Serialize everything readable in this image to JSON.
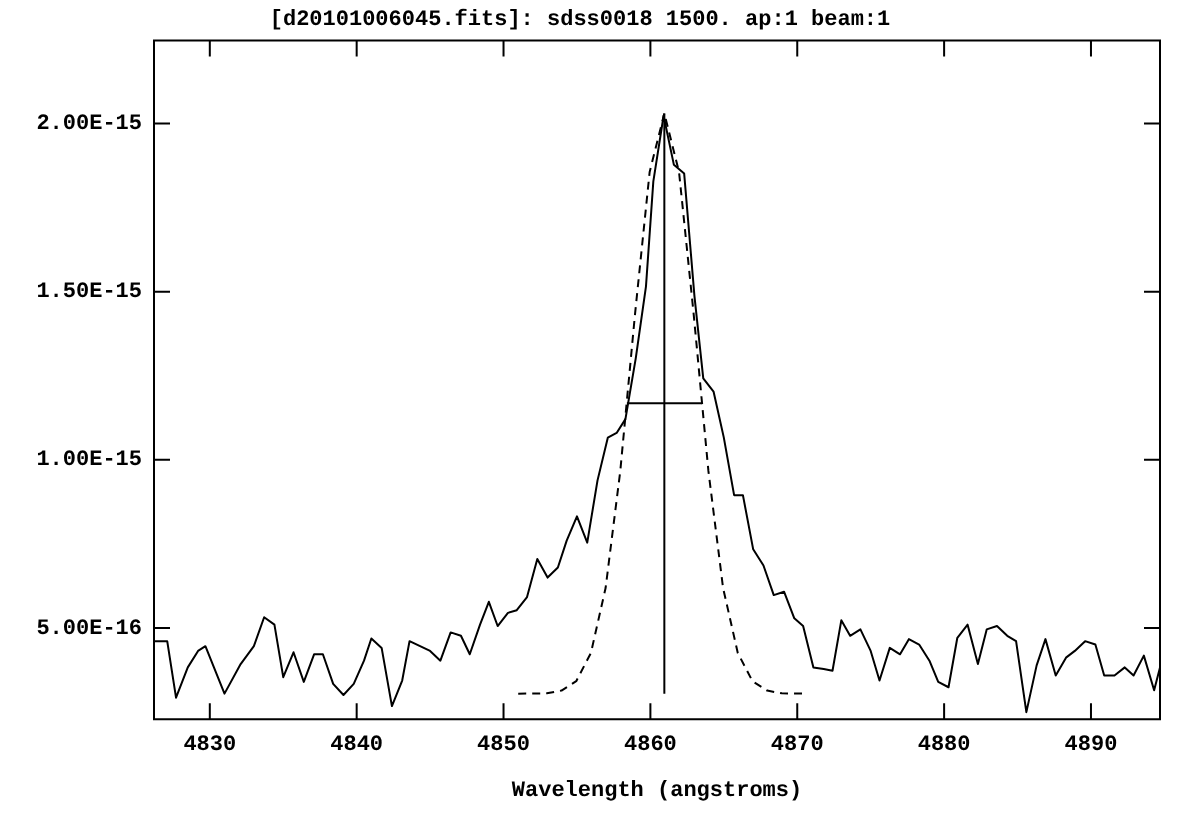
{
  "chart_data": {
    "type": "line",
    "title": "[d20101006045.fits]: sdss0018 1500. ap:1 beam:1",
    "xlabel": "Wavelength (angstroms)",
    "xlim": [
      4826.2,
      4894.7
    ],
    "xticks": [
      4830,
      4840,
      4850,
      4860,
      4870,
      4880,
      4890
    ],
    "ylim": [
      2.29e-16,
      2.247e-15
    ],
    "yticks": [
      {
        "value": 5e-16,
        "label": "5.00E-16"
      },
      {
        "value": 1e-15,
        "label": "1.00E-15"
      },
      {
        "value": 1.5e-15,
        "label": "1.50E-15"
      },
      {
        "value": 2e-15,
        "label": "2.00E-15"
      }
    ],
    "grid": false,
    "legend": false,
    "marker": "none",
    "series": [
      {
        "color": "#000000",
        "x": [
          4826.2,
          4827.1,
          4827.7,
          4828.5,
          4829.2,
          4829.7,
          4831.0,
          4832.1,
          4833.0,
          4833.7,
          4834.4,
          4835.0,
          4835.7,
          4836.4,
          4837.1,
          4837.7,
          4838.4,
          4839.1,
          4839.8,
          4840.5,
          4841.0,
          4841.7,
          4842.4,
          4843.1,
          4843.6,
          4845.0,
          4845.7,
          4846.4,
          4847.1,
          4847.7,
          4848.4,
          4849.0,
          4849.6,
          4850.3,
          4850.9,
          4851.6,
          4852.3,
          4853.0,
          4853.7,
          4854.3,
          4855.0,
          4855.7,
          4856.4,
          4857.1,
          4857.7,
          4858.3,
          4859.0,
          4859.7,
          4860.2,
          4860.9,
          4861.6,
          4862.3,
          4863.0,
          4863.6,
          4864.3,
          4865.0,
          4865.7,
          4866.3,
          4867.0,
          4867.7,
          4868.4,
          4869.1,
          4869.8,
          4870.4,
          4871.1,
          4871.8,
          4872.4,
          4873.0,
          4873.6,
          4874.3,
          4875.0,
          4875.6,
          4876.3,
          4877.0,
          4877.6,
          4878.3,
          4879.0,
          4879.6,
          4880.3,
          4880.9,
          4881.6,
          4882.3,
          4882.9,
          4883.6,
          4884.3,
          4884.9,
          4885.6,
          4886.3,
          4886.9,
          4887.6,
          4888.3,
          4888.9,
          4889.6,
          4890.3,
          4890.9,
          4891.6,
          4892.3,
          4892.9,
          4893.6,
          4894.3,
          4894.7
        ],
        "values": [
          4.61e-16,
          4.61e-16,
          2.93e-16,
          3.83e-16,
          4.32e-16,
          4.46e-16,
          3.05e-16,
          3.93e-16,
          4.46e-16,
          5.32e-16,
          5.1e-16,
          3.54e-16,
          4.28e-16,
          3.4e-16,
          4.22e-16,
          4.22e-16,
          3.34e-16,
          3.01e-16,
          3.34e-16,
          4.03e-16,
          4.69e-16,
          4.41e-16,
          2.68e-16,
          3.44e-16,
          4.61e-16,
          4.32e-16,
          4.03e-16,
          4.87e-16,
          4.77e-16,
          4.22e-16,
          5.1e-16,
          5.78e-16,
          5.06e-16,
          5.45e-16,
          5.53e-16,
          5.92e-16,
          7.05e-16,
          6.5e-16,
          6.8e-16,
          7.6e-16,
          8.32e-16,
          7.54e-16,
          9.39e-16,
          1.066e-15,
          1.08e-15,
          1.121e-15,
          1.301e-15,
          1.516e-15,
          1.828e-15,
          2.023e-15,
          1.877e-15,
          1.851e-15,
          1.487e-15,
          1.242e-15,
          1.203e-15,
          1.066e-15,
          8.95e-16,
          8.95e-16,
          7.34e-16,
          6.86e-16,
          5.98e-16,
          6.08e-16,
          5.29e-16,
          5.06e-16,
          3.83e-16,
          3.78e-16,
          3.73e-16,
          5.23e-16,
          4.77e-16,
          4.96e-16,
          4.32e-16,
          3.44e-16,
          4.41e-16,
          4.22e-16,
          4.67e-16,
          4.51e-16,
          4.03e-16,
          3.4e-16,
          3.24e-16,
          4.71e-16,
          5.1e-16,
          3.93e-16,
          4.96e-16,
          5.06e-16,
          4.77e-16,
          4.61e-16,
          2.5e-16,
          3.89e-16,
          4.67e-16,
          3.59e-16,
          4.12e-16,
          4.32e-16,
          4.61e-16,
          4.51e-16,
          3.59e-16,
          3.59e-16,
          3.83e-16,
          3.59e-16,
          4.18e-16,
          3.15e-16,
          3.83e-16
        ]
      },
      {
        "color": "#000000",
        "line_style": "dashed",
        "x": [
          4851.0,
          4852.95,
          4853.95,
          4854.95,
          4855.95,
          4856.95,
          4857.95,
          4858.95,
          4859.95,
          4860.95,
          4861.95,
          4862.95,
          4863.95,
          4864.95,
          4865.95,
          4866.95,
          4867.95,
          4868.95,
          4870.6
        ],
        "values": [
          3.05e-16,
          3.06e-16,
          3.14e-16,
          3.42e-16,
          4.26e-16,
          6.19e-16,
          9.67e-16,
          1.432e-15,
          1.856e-15,
          2.03e-15,
          1.856e-15,
          1.432e-15,
          9.67e-16,
          6.19e-16,
          4.26e-16,
          3.42e-16,
          3.14e-16,
          3.06e-16,
          3.05e-16
        ]
      },
      {
        "color": "#000000",
        "x": [
          4860.95,
          4860.95
        ],
        "values": [
          3.05e-16,
          2.03e-15
        ]
      },
      {
        "color": "#000000",
        "x": [
          4858.4,
          4863.5
        ],
        "values": [
          1.168e-15,
          1.168e-15
        ]
      }
    ]
  }
}
